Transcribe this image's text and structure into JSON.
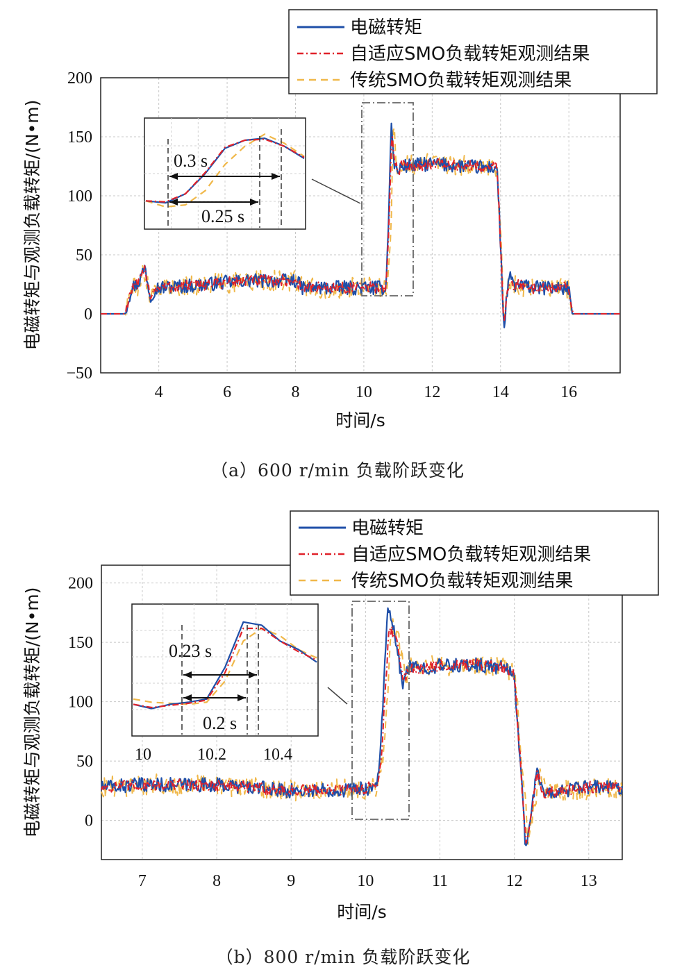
{
  "chart_data": [
    {
      "type": "line",
      "caption": "（a）600 r/min 负载阶跃变化",
      "xlabel": "时间/s",
      "ylabel": "电磁转矩与观测负载转矩/(N•m)",
      "xlim": [
        2.3,
        17.5
      ],
      "ylim": [
        -50,
        200
      ],
      "xticks": [
        4,
        6,
        8,
        10,
        12,
        14,
        16
      ],
      "yticks": [
        -50,
        0,
        50,
        100,
        150,
        200
      ],
      "grid": true,
      "legend_position": "top-right",
      "colors": {
        "series1": "#1f4fa8",
        "series2": "#e0222a",
        "series3": "#f0b84a"
      },
      "series": [
        {
          "name": "电磁转矩",
          "style": "solid",
          "x": [
            2.3,
            3.0,
            3.2,
            3.4,
            3.6,
            3.75,
            3.9,
            5.0,
            6.5,
            8.0,
            8.2,
            9.0,
            10.0,
            10.65,
            10.7,
            10.8,
            10.9,
            11.0,
            11.1,
            11.5,
            12.0,
            12.5,
            13.0,
            13.5,
            13.9,
            14.0,
            14.1,
            14.2,
            14.3,
            14.4,
            14.6,
            15.0,
            15.5,
            16.0,
            16.1,
            17.5
          ],
          "y": [
            0,
            0,
            22,
            26,
            40,
            14,
            22,
            24,
            28,
            28,
            22,
            22,
            22,
            22,
            60,
            160,
            125,
            120,
            125,
            126,
            127,
            126,
            125,
            124,
            124,
            60,
            -15,
            20,
            32,
            24,
            24,
            22,
            22,
            22,
            0,
            0
          ]
        },
        {
          "name": "自适应SMO负载转矩观测结果",
          "style": "dash-dot",
          "x": [
            2.3,
            3.0,
            3.2,
            3.4,
            3.6,
            3.75,
            3.9,
            5.0,
            6.5,
            8.0,
            8.2,
            9.0,
            10.0,
            10.65,
            10.72,
            10.82,
            10.92,
            11.0,
            11.1,
            11.5,
            12.0,
            12.5,
            13.0,
            13.5,
            13.9,
            14.0,
            14.1,
            14.2,
            14.3,
            14.4,
            14.6,
            15.0,
            15.5,
            16.0,
            16.1,
            17.5
          ],
          "y": [
            0,
            0,
            21,
            25,
            38,
            15,
            22,
            24,
            28,
            28,
            22,
            22,
            22,
            22,
            60,
            157,
            126,
            121,
            125,
            126,
            127,
            126,
            125,
            124,
            124,
            62,
            -12,
            20,
            30,
            24,
            24,
            22,
            22,
            22,
            0,
            0
          ]
        },
        {
          "name": "传统SMO负载转矩观测结果",
          "style": "dashed",
          "x": [
            2.3,
            3.0,
            3.2,
            3.4,
            3.6,
            3.75,
            3.9,
            5.0,
            6.5,
            8.0,
            8.2,
            9.0,
            10.0,
            10.7,
            10.78,
            10.88,
            10.98,
            11.05,
            11.15,
            11.5,
            12.0,
            12.5,
            13.0,
            13.5,
            13.9,
            14.0,
            14.12,
            14.22,
            14.32,
            14.42,
            14.6,
            15.0,
            15.5,
            16.0,
            16.1,
            17.5
          ],
          "y": [
            0,
            0,
            20,
            24,
            36,
            16,
            22,
            24,
            28,
            28,
            22,
            22,
            22,
            22,
            60,
            168,
            120,
            118,
            125,
            126,
            127,
            126,
            125,
            124,
            124,
            64,
            -8,
            22,
            30,
            24,
            24,
            22,
            22,
            22,
            0,
            0
          ]
        }
      ],
      "inset": {
        "annotations": [
          "0.3 s",
          "0.25 s"
        ],
        "series_y": [
          [
            88,
            86,
            95,
            115,
            140,
            148,
            150,
            142,
            130
          ],
          [
            88,
            87,
            95,
            116,
            141,
            148,
            149,
            142,
            131
          ],
          [
            88,
            82,
            84,
            98,
            124,
            142,
            154,
            145,
            132
          ]
        ]
      }
    },
    {
      "type": "line",
      "caption": "（b）800 r/min 负载阶跃变化",
      "xlabel": "时间/s",
      "ylabel": "电磁转矩与观测负载转矩/(N•m)",
      "xlim": [
        6.45,
        13.45
      ],
      "ylim": [
        -33,
        215
      ],
      "xticks": [
        7,
        8,
        9,
        10,
        11,
        12,
        13
      ],
      "yticks": [
        0,
        50,
        100,
        150,
        200
      ],
      "grid": true,
      "legend_position": "top-right",
      "colors": {
        "series1": "#1f4fa8",
        "series2": "#e0222a",
        "series3": "#f0b84a"
      },
      "series": [
        {
          "name": "电磁转矩",
          "style": "solid",
          "x": [
            6.45,
            7.0,
            8.0,
            9.0,
            9.8,
            10.15,
            10.2,
            10.3,
            10.4,
            10.5,
            10.55,
            10.65,
            11.0,
            11.5,
            11.9,
            12.0,
            12.1,
            12.15,
            12.2,
            12.3,
            12.4,
            12.5,
            13.0,
            13.45
          ],
          "y": [
            28,
            30,
            30,
            25,
            26,
            28,
            60,
            178,
            155,
            110,
            130,
            128,
            130,
            131,
            128,
            122,
            30,
            -20,
            -10,
            45,
            20,
            24,
            28,
            28
          ]
        },
        {
          "name": "自适应SMO负载转矩观测结果",
          "style": "dash-dot",
          "x": [
            6.45,
            7.0,
            8.0,
            9.0,
            9.8,
            10.15,
            10.22,
            10.32,
            10.42,
            10.52,
            10.58,
            10.68,
            11.0,
            11.5,
            11.9,
            12.0,
            12.1,
            12.15,
            12.2,
            12.3,
            12.4,
            12.5,
            13.0,
            13.45
          ],
          "y": [
            28,
            30,
            30,
            25,
            26,
            28,
            60,
            165,
            150,
            118,
            128,
            128,
            130,
            131,
            128,
            122,
            32,
            -16,
            -8,
            42,
            22,
            24,
            28,
            28
          ]
        },
        {
          "name": "传统SMO负载转矩观测结果",
          "style": "dashed",
          "x": [
            6.45,
            7.0,
            8.0,
            9.0,
            9.8,
            10.17,
            10.25,
            10.35,
            10.45,
            10.55,
            10.6,
            10.7,
            11.0,
            11.5,
            11.9,
            12.0,
            12.12,
            12.18,
            12.24,
            12.34,
            12.44,
            12.54,
            13.0,
            13.45
          ],
          "y": [
            28,
            30,
            30,
            25,
            26,
            28,
            55,
            168,
            148,
            120,
            132,
            130,
            130,
            131,
            128,
            124,
            36,
            -12,
            -4,
            40,
            24,
            24,
            26,
            28
          ]
        }
      ],
      "inset": {
        "xticks": [
          10.0,
          10.2,
          10.4
        ],
        "annotations": [
          "0.23 s",
          "0.2 s"
        ],
        "series_y": [
          [
            90,
            86,
            90,
            92,
            95,
            125,
            168,
            165,
            150,
            142,
            130
          ],
          [
            90,
            87,
            89,
            91,
            94,
            120,
            162,
            162,
            150,
            140,
            132
          ],
          [
            95,
            92,
            91,
            90,
            92,
            112,
            150,
            162,
            155,
            142,
            134
          ]
        ]
      }
    }
  ]
}
